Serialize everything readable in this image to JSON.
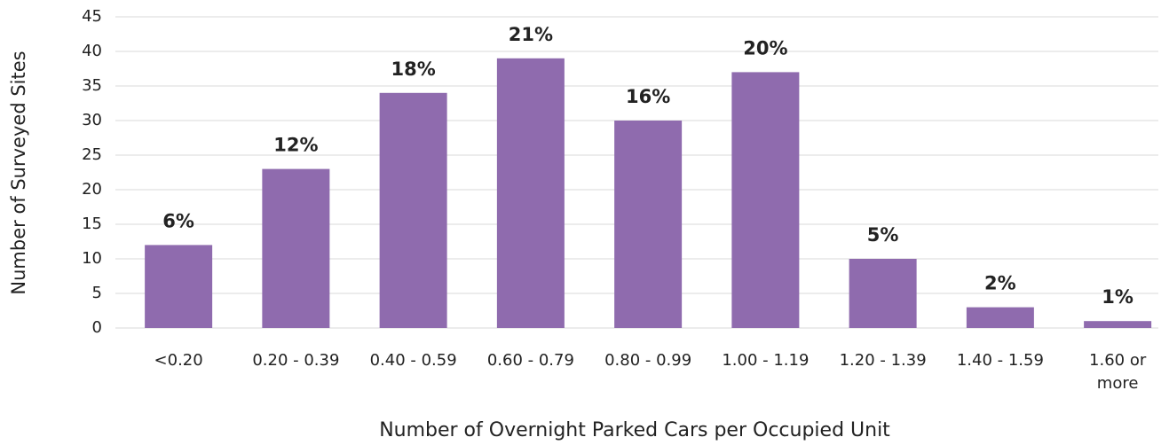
{
  "chart_data": {
    "type": "bar",
    "categories": [
      "<0.20",
      "0.20 - 0.39",
      "0.40 - 0.59",
      "0.60  - 0.79",
      "0.80 - 0.99",
      "1.00 - 1.19",
      "1.20 - 1.39",
      "1.40 - 1.59",
      "1.60 or\nmore"
    ],
    "values": [
      12,
      23,
      34,
      39,
      30,
      37,
      10,
      3,
      1
    ],
    "annotations": [
      "6%",
      "12%",
      "18%",
      "21%",
      "16%",
      "20%",
      "5%",
      "2%",
      "1%"
    ],
    "color": "#8f6bae",
    "annotation_color": "#9370b8",
    "xlabel": "Number of Overnight Parked Cars per Occupied Unit",
    "ylabel": "Number of  Surveyed Sites",
    "ylim": [
      0,
      45
    ],
    "yticks": [
      0,
      5,
      10,
      15,
      20,
      25,
      30,
      35,
      40,
      45
    ],
    "grid": true
  }
}
